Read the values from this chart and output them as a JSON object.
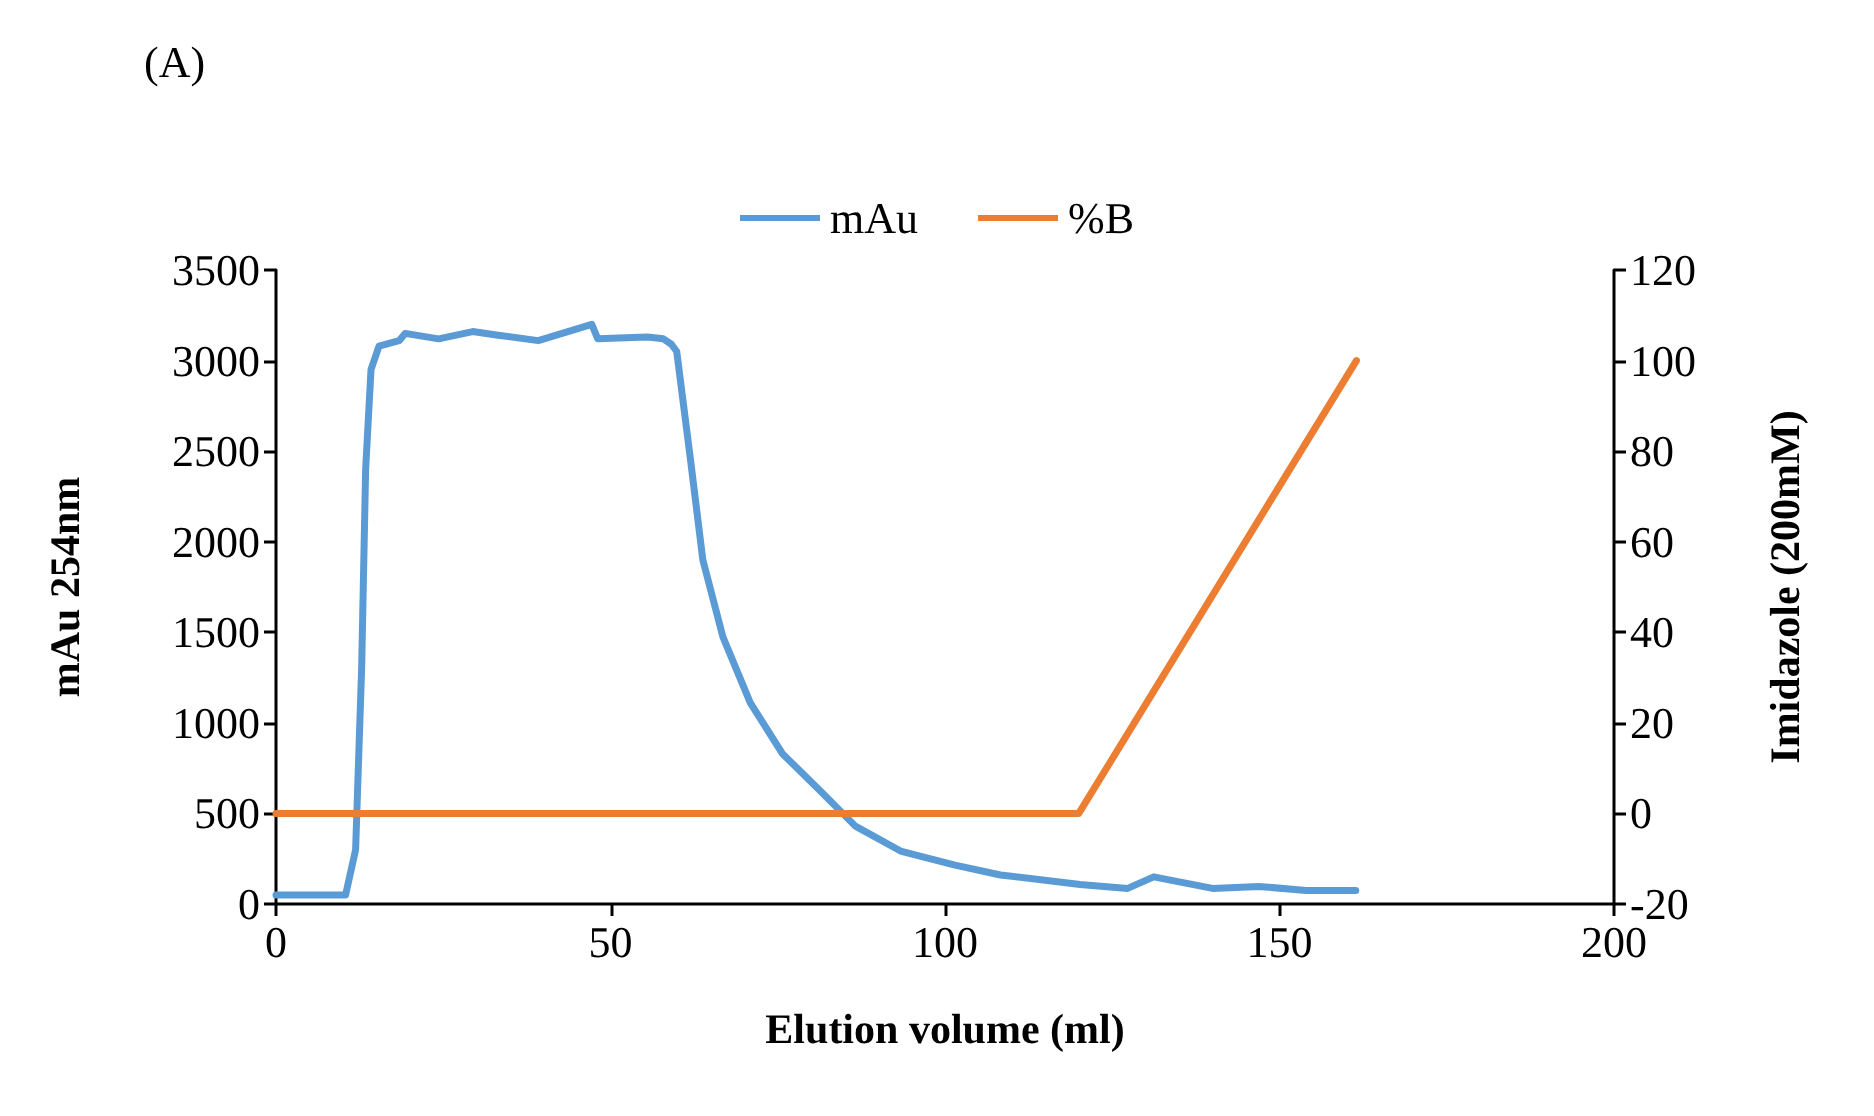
{
  "chart_data": {
    "type": "line",
    "annotations": [
      "(A)"
    ],
    "xlabel": "Elution volume (ml)",
    "ylabel": "mAu 254nm",
    "y2label": "Imidazole (200mM)",
    "xlim": [
      0,
      200
    ],
    "xticks": [
      0,
      50,
      100,
      150,
      200
    ],
    "ylim": [
      0,
      3500
    ],
    "yticks": [
      0,
      500,
      1000,
      1500,
      2000,
      2500,
      3000,
      3500
    ],
    "y2lim": [
      -20,
      120
    ],
    "y2ticks": [
      -20,
      0,
      20,
      40,
      60,
      80,
      100,
      120
    ],
    "legend": "top",
    "grid": false,
    "marker": "none",
    "line_style": "solid",
    "series": [
      {
        "name": "mAu",
        "color": "#5b9bd5",
        "x": [
          0,
          10.4,
          11.9,
          12.8,
          13.4,
          14.2,
          15.4,
          18.4,
          19.3,
          24.3,
          29.4,
          33.2,
          39.2,
          47.2,
          48.1,
          55.5,
          57.9,
          59.1,
          59.9,
          62,
          63.8,
          66.8,
          70.9,
          75.7,
          81.6,
          86.6,
          93.5,
          101.5,
          108.3,
          120.2,
          127.3,
          131.2,
          140,
          146.9,
          154,
          161.4
        ],
        "values": [
          50,
          50,
          300,
          1300,
          2400,
          2950,
          3080,
          3110,
          3150,
          3120,
          3160,
          3140,
          3110,
          3200,
          3120,
          3130,
          3120,
          3090,
          3050,
          2440,
          1900,
          1475,
          1110,
          830,
          615,
          430,
          290,
          215,
          160,
          108,
          86,
          150,
          86,
          97,
          75,
          75
        ]
      },
      {
        "name": "%B",
        "color": "#ed7d31",
        "axis": "y2",
        "x": [
          0,
          120,
          161.5
        ],
        "values": [
          0,
          0,
          100
        ]
      }
    ]
  }
}
